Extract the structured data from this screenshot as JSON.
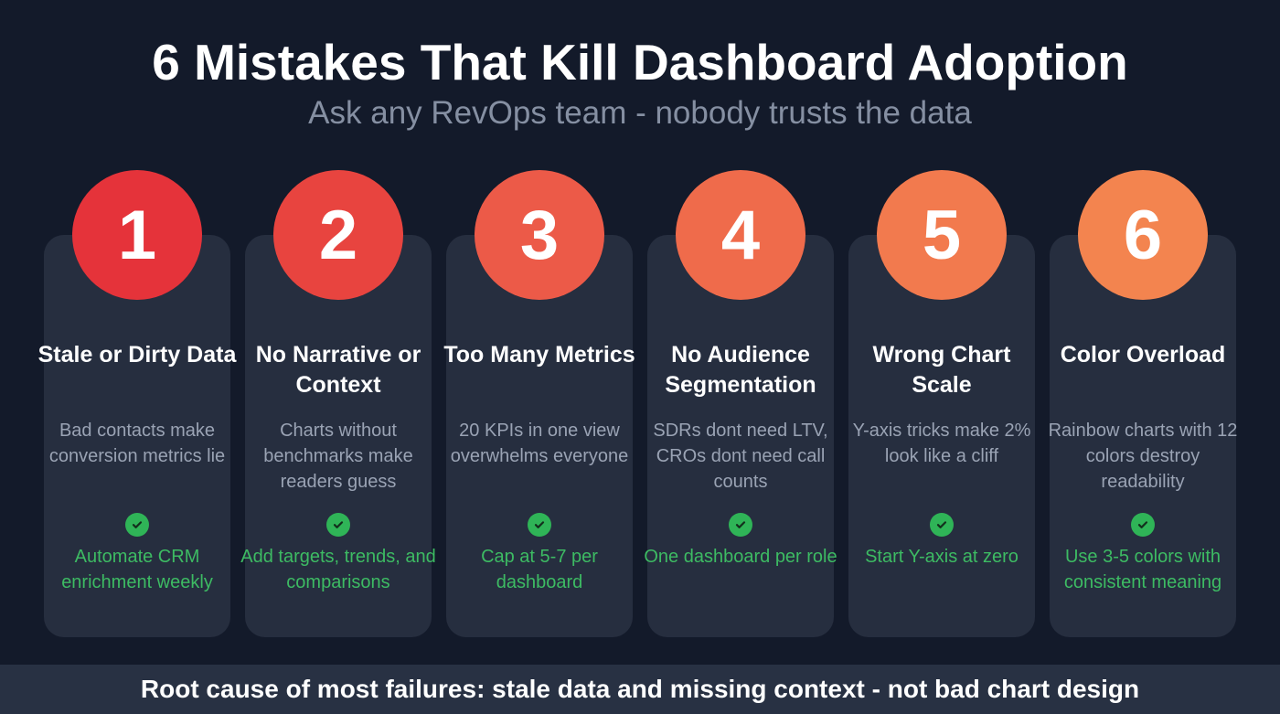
{
  "title": "6 Mistakes That Kill Dashboard Adoption",
  "subtitle": "Ask any RevOps team - nobody trusts the data",
  "colors": {
    "background": "#131a2a",
    "card": "#262e3f",
    "fix_text": "#3dbb63"
  },
  "mistakes": [
    {
      "number": "1",
      "title": "Stale or Dirty Data",
      "description": "Bad contacts make conversion metrics lie",
      "fix": "Automate CRM enrichment weekly",
      "color": "#e5333a",
      "icon": "check-circle-icon"
    },
    {
      "number": "2",
      "title": "No Narrative or Context",
      "description": "Charts without benchmarks make readers guess",
      "fix": "Add targets, trends, and comparisons",
      "color": "#e8443f",
      "icon": "check-circle-icon"
    },
    {
      "number": "3",
      "title": "Too Many Metrics",
      "description": "20 KPIs in one view overwhelms everyone",
      "fix": "Cap at 5-7 per dashboard",
      "color": "#ec5a48",
      "icon": "check-circle-icon"
    },
    {
      "number": "4",
      "title": "No Audience Segmentation",
      "description": "SDRs dont need LTV, CROs dont need call counts",
      "fix": "One dashboard per role",
      "color": "#ef6b4b",
      "icon": "check-circle-icon"
    },
    {
      "number": "5",
      "title": "Wrong Chart Scale",
      "description": "Y-axis tricks make 2% look like a cliff",
      "fix": "Start Y-axis at zero",
      "color": "#f27a4e",
      "icon": "check-circle-icon"
    },
    {
      "number": "6",
      "title": "Color Overload",
      "description": "Rainbow charts with 12 colors destroy readability",
      "fix": "Use 3-5 colors with consistent meaning",
      "color": "#f3844f",
      "icon": "check-circle-icon"
    }
  ],
  "footer": "Root cause of most failures: stale data and missing context - not bad chart design"
}
